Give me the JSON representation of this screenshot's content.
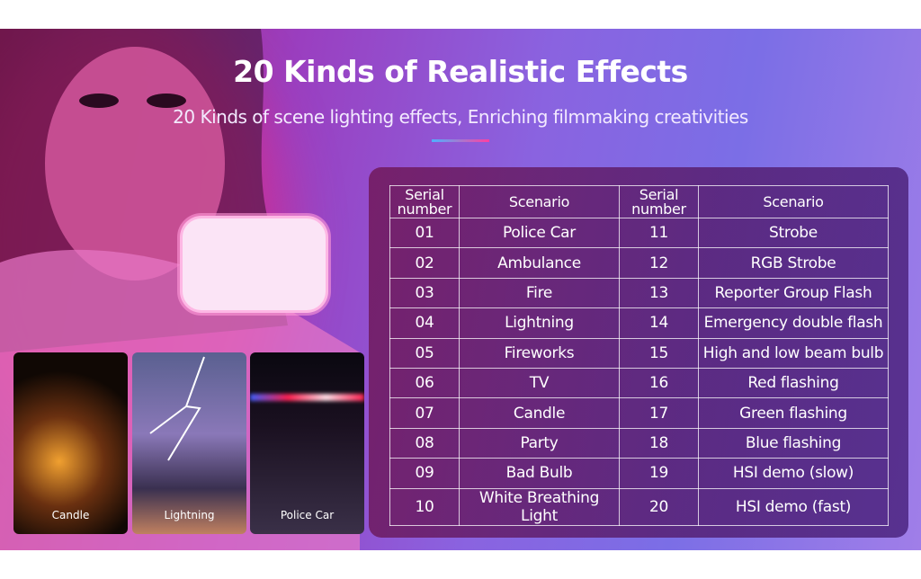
{
  "header": {
    "title": "20 Kinds of Realistic Effects",
    "subtitle": "20 Kinds of scene lighting effects, Enriching filmmaking creativities"
  },
  "table": {
    "columns": [
      "Serial number",
      "Scenario",
      "Serial number",
      "Scenario"
    ],
    "rows": [
      [
        "01",
        "Police Car",
        "11",
        "Strobe"
      ],
      [
        "02",
        "Ambulance",
        "12",
        "RGB Strobe"
      ],
      [
        "03",
        "Fire",
        "13",
        "Reporter Group Flash"
      ],
      [
        "04",
        "Lightning",
        "14",
        "Emergency double flash"
      ],
      [
        "05",
        "Fireworks",
        "15",
        "High and low beam bulb"
      ],
      [
        "06",
        "TV",
        "16",
        "Red flashing"
      ],
      [
        "07",
        "Candle",
        "17",
        "Green flashing"
      ],
      [
        "08",
        "Party",
        "18",
        "Blue flashing"
      ],
      [
        "09",
        "Bad Bulb",
        "19",
        "HSI demo (slow)"
      ],
      [
        "10",
        "White Breathing Light",
        "20",
        "HSI demo (fast)"
      ]
    ]
  },
  "thumbnails": [
    "Candle",
    "Lightning",
    "Police Car"
  ]
}
